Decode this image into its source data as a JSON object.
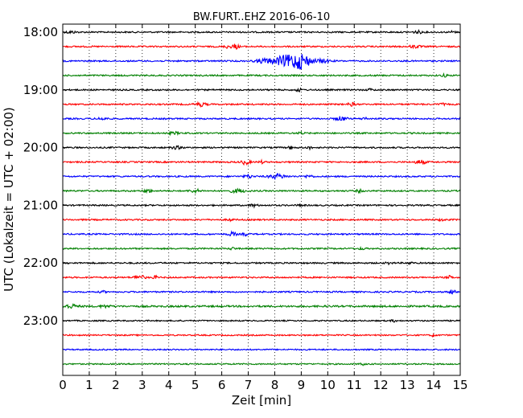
{
  "chart_data": {
    "type": "line",
    "title": "BW.FURT..EHZ 2016-06-10",
    "xlabel": "Zeit  [min]",
    "ylabel": "UTC (Lokalzeit = UTC + 02:00)",
    "xlim": [
      0,
      15
    ],
    "x_ticks": [
      "0",
      "1",
      "2",
      "3",
      "4",
      "5",
      "6",
      "7",
      "8",
      "9",
      "10",
      "11",
      "12",
      "13",
      "14",
      "15"
    ],
    "y_ticks": [
      "18:00",
      "19:00",
      "20:00",
      "21:00",
      "22:00",
      "23:00"
    ],
    "grid": "vertical dotted",
    "rows_per_hour": 4,
    "minutes_per_row": 15,
    "trace_colors": [
      "#000000",
      "#ff0000",
      "#0000ff",
      "#008000"
    ],
    "traces": [
      {
        "time": "18:00",
        "noise": 0.9,
        "events": [
          [
            0.3,
            1.2,
            0.2
          ],
          [
            13.4,
            1.6,
            0.15
          ],
          [
            14.7,
            1.3,
            0.1
          ]
        ]
      },
      {
        "time": "18:15",
        "noise": 0.9,
        "events": [
          [
            6.5,
            2.8,
            0.15
          ],
          [
            6.2,
            1.5,
            0.1
          ],
          [
            13.3,
            1.5,
            0.2
          ]
        ]
      },
      {
        "time": "18:30",
        "noise": 0.9,
        "events": [
          [
            8.4,
            6.5,
            0.45
          ],
          [
            9.0,
            9.0,
            0.35
          ],
          [
            7.6,
            2.5,
            0.3
          ],
          [
            9.8,
            2.0,
            0.3
          ]
        ]
      },
      {
        "time": "18:45",
        "noise": 0.9,
        "events": [
          [
            14.4,
            1.6,
            0.1
          ]
        ]
      },
      {
        "time": "19:00",
        "noise": 0.9,
        "events": [
          [
            8.9,
            2.0,
            0.1
          ],
          [
            11.6,
            1.3,
            0.1
          ]
        ]
      },
      {
        "time": "19:15",
        "noise": 0.9,
        "events": [
          [
            5.2,
            2.2,
            0.2
          ],
          [
            10.9,
            1.8,
            0.15
          ],
          [
            14.3,
            1.3,
            0.1
          ]
        ]
      },
      {
        "time": "19:30",
        "noise": 0.9,
        "events": [
          [
            10.5,
            2.6,
            0.2
          ],
          [
            11.4,
            1.5,
            0.1
          ],
          [
            1.5,
            1.2,
            0.2
          ]
        ]
      },
      {
        "time": "19:45",
        "noise": 0.9,
        "events": [
          [
            4.2,
            1.2,
            0.2
          ],
          [
            9.0,
            1.3,
            0.1
          ]
        ]
      },
      {
        "time": "20:00",
        "noise": 0.9,
        "events": [
          [
            4.3,
            1.5,
            0.2
          ],
          [
            8.6,
            1.5,
            0.1
          ],
          [
            9.3,
            1.4,
            0.1
          ]
        ]
      },
      {
        "time": "20:15",
        "noise": 0.9,
        "events": [
          [
            6.9,
            2.8,
            0.15
          ],
          [
            7.5,
            1.5,
            0.1
          ],
          [
            13.5,
            2.2,
            0.2
          ]
        ]
      },
      {
        "time": "20:30",
        "noise": 0.9,
        "events": [
          [
            8.1,
            2.8,
            0.3
          ],
          [
            7.0,
            2.0,
            0.15
          ],
          [
            9.3,
            1.5,
            0.15
          ]
        ]
      },
      {
        "time": "20:45",
        "noise": 0.9,
        "events": [
          [
            3.2,
            1.8,
            0.15
          ],
          [
            5.0,
            1.8,
            0.2
          ],
          [
            6.6,
            2.0,
            0.3
          ],
          [
            11.2,
            1.8,
            0.1
          ]
        ]
      },
      {
        "time": "21:00",
        "noise": 0.9,
        "events": [
          [
            7.2,
            1.5,
            0.15
          ],
          [
            9.0,
            1.5,
            0.1
          ]
        ]
      },
      {
        "time": "21:15",
        "noise": 0.9,
        "events": [
          [
            6.3,
            1.4,
            0.1
          ],
          [
            14.3,
            1.3,
            0.1
          ]
        ]
      },
      {
        "time": "21:30",
        "noise": 0.9,
        "events": [
          [
            6.4,
            2.4,
            0.15
          ],
          [
            6.9,
            1.8,
            0.1
          ]
        ]
      },
      {
        "time": "21:45",
        "noise": 0.9,
        "events": [
          [
            6.4,
            1.3,
            0.1
          ],
          [
            11.3,
            1.2,
            0.1
          ]
        ]
      },
      {
        "time": "22:00",
        "noise": 0.9,
        "events": [
          [
            12.3,
            1.3,
            0.1
          ],
          [
            13.1,
            1.2,
            0.1
          ]
        ]
      },
      {
        "time": "22:15",
        "noise": 0.9,
        "events": [
          [
            2.9,
            2.4,
            0.2
          ],
          [
            3.5,
            1.6,
            0.1
          ],
          [
            14.6,
            1.8,
            0.1
          ]
        ]
      },
      {
        "time": "22:30",
        "noise": 0.9,
        "events": [
          [
            1.5,
            1.2,
            0.1
          ],
          [
            14.7,
            3.0,
            0.1
          ]
        ]
      },
      {
        "time": "22:45",
        "noise": 1.1,
        "events": [
          [
            0.3,
            2.2,
            0.25
          ],
          [
            1.6,
            1.2,
            0.2
          ]
        ]
      },
      {
        "time": "23:00",
        "noise": 0.8,
        "events": [
          [
            12.5,
            1.2,
            0.1
          ]
        ]
      },
      {
        "time": "23:15",
        "noise": 0.8,
        "events": [
          [
            14.0,
            1.3,
            0.1
          ]
        ]
      },
      {
        "time": "23:30",
        "noise": 0.8,
        "events": []
      },
      {
        "time": "23:45",
        "noise": 0.8,
        "events": [
          [
            11.3,
            1.2,
            0.1
          ]
        ]
      }
    ]
  }
}
